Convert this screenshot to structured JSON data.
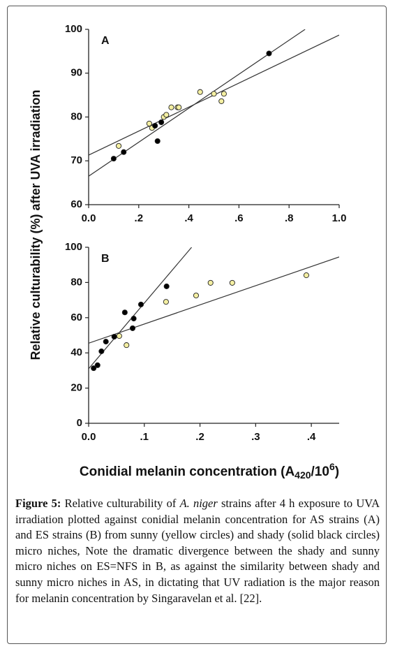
{
  "chart_data": [
    {
      "type": "scatter",
      "label": "A",
      "xlim": [
        0,
        1
      ],
      "ylim": [
        60,
        100
      ],
      "xticks": [
        {
          "value": 0,
          "label": "0.0"
        },
        {
          "value": 0.2,
          "label": ".2"
        },
        {
          "value": 0.4,
          "label": ".4"
        },
        {
          "value": 0.6,
          "label": ".6"
        },
        {
          "value": 0.8,
          "label": ".8"
        },
        {
          "value": 1,
          "label": "1.0"
        }
      ],
      "yticks": [
        60,
        70,
        80,
        90,
        100
      ],
      "series": [
        {
          "color": "#f4efa2",
          "x": [
            0.12,
            0.242,
            0.253,
            0.3,
            0.31,
            0.33,
            0.355,
            0.36,
            0.445,
            0.5,
            0.53,
            0.54
          ],
          "values": [
            73.4,
            78.5,
            77.5,
            80.0,
            80.5,
            82.2,
            82.2,
            82.2,
            85.7,
            85.3,
            83.6,
            85.3
          ]
        },
        {
          "color": "#000000",
          "x": [
            0.1,
            0.14,
            0.265,
            0.275,
            0.29,
            0.72
          ],
          "values": [
            70.5,
            72.0,
            78.0,
            74.5,
            78.8,
            94.5
          ]
        }
      ],
      "fit_lines": [
        {
          "x": [
            0,
            0.864
          ],
          "values": [
            66.5,
            100
          ]
        },
        {
          "x": [
            0,
            1
          ],
          "values": [
            71.3,
            98.7
          ]
        }
      ]
    },
    {
      "type": "scatter",
      "label": "B",
      "xlim": [
        0,
        0.45
      ],
      "ylim": [
        0,
        100
      ],
      "xticks": [
        {
          "value": 0,
          "label": "0.0"
        },
        {
          "value": 0.1,
          "label": ".1"
        },
        {
          "value": 0.2,
          "label": ".2"
        },
        {
          "value": 0.3,
          "label": ".3"
        },
        {
          "value": 0.4,
          "label": ".4"
        }
      ],
      "yticks": [
        0,
        20,
        40,
        60,
        80,
        100
      ],
      "series": [
        {
          "color": "#f4efa2",
          "x": [
            0.055,
            0.068,
            0.139,
            0.193,
            0.219,
            0.258,
            0.391
          ],
          "values": [
            49.6,
            44.4,
            69,
            72.6,
            79.8,
            79.8,
            84.1
          ]
        },
        {
          "color": "#000000",
          "x": [
            0.009,
            0.016,
            0.023,
            0.031,
            0.046,
            0.065,
            0.079,
            0.081,
            0.094,
            0.14
          ],
          "values": [
            31.3,
            33,
            40.9,
            46.4,
            49.2,
            63,
            54,
            59.5,
            67.5,
            77.8
          ]
        }
      ],
      "fit_lines": [
        {
          "x": [
            0,
            0.185
          ],
          "values": [
            31,
            100
          ]
        },
        {
          "x": [
            0,
            0.45
          ],
          "values": [
            45.5,
            94.5
          ]
        }
      ]
    }
  ],
  "y_label": "Relative culturability (%) after UVA irradiation",
  "x_label": {
    "main": "Conidial melanin concentration (A",
    "sub": "420",
    "mid": "/10",
    "sup": "6",
    "end": ")"
  },
  "caption": {
    "label": "Figure 5:",
    "text_before": "Relative culturability of",
    "italic": "A. niger",
    "text_after": "strains after 4 h exposure to UVA irradiation plotted against conidial melanin concentration for AS strains (A) and ES strains (B) from sunny (yellow circles) and shady (solid black circles) micro niches, Note the dramatic divergence between the shady and sunny micro niches on ES=NFS in B, as against the similarity between shady and sunny micro niches in AS, in dictating that UV radiation is the major reason for melanin concentration by Singaravelan et al. [22]."
  }
}
